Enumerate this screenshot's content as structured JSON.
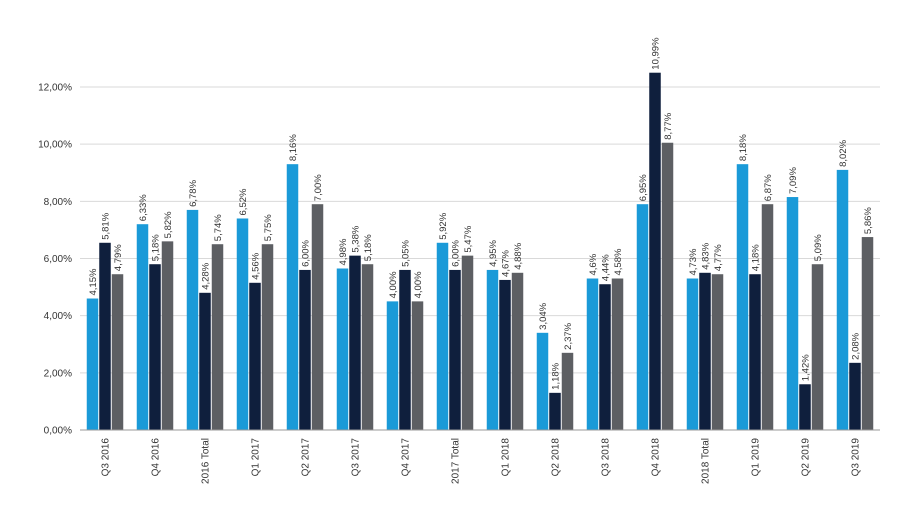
{
  "chart_data": {
    "type": "bar",
    "title": "",
    "xlabel": "",
    "ylabel": "",
    "ylim": [
      0,
      12
    ],
    "yticks": [
      "0,00%",
      "2,00%",
      "4,00%",
      "6,00%",
      "8,00%",
      "10,00%",
      "12,00%"
    ],
    "grid": true,
    "legend": "none",
    "categories": [
      "Q3 2016",
      "Q4 2016",
      "2016 Total",
      "Q1 2017",
      "Q2 2017",
      "Q3 2017",
      "Q4 2017",
      "2017 Total",
      "Q1 2018",
      "Q2 2018",
      "Q3 2018",
      "Q4 2018",
      "2018 Total",
      "Q1 2019",
      "Q2 2019",
      "Q3 2019"
    ],
    "series": [
      {
        "color": "#1a9ad8",
        "values": [
          4.6,
          7.2,
          7.7,
          7.4,
          9.3,
          5.65,
          4.5,
          6.55,
          5.6,
          3.4,
          5.3,
          7.9,
          5.3,
          9.3,
          8.15,
          9.1
        ],
        "labels": [
          "4,15%",
          "6,33%",
          "6,78%",
          "6,52%",
          "8,16%",
          "4,98%",
          "4,00%",
          "5,92%",
          "4,95%",
          "3,04%",
          "4,6%",
          "6,95%",
          "4,73%",
          "8,18%",
          "7,09%",
          "8,02%"
        ]
      },
      {
        "color": "#0f1f3d",
        "values": [
          6.55,
          5.8,
          4.8,
          5.15,
          5.6,
          6.1,
          5.6,
          5.6,
          5.25,
          1.3,
          5.1,
          12.5,
          5.5,
          5.45,
          1.6,
          2.35
        ],
        "labels": [
          "5,81%",
          "5,18%",
          "4,28%",
          "4,56%",
          "6,00%",
          "5,38%",
          "5,05%",
          "6,00%",
          "4,67%",
          "1,18%",
          "4,44%",
          "10,99%",
          "4,83%",
          "4,18%",
          "1,42%",
          "2,08%"
        ]
      },
      {
        "color": "#5d5f63",
        "values": [
          5.45,
          6.6,
          6.5,
          6.5,
          7.9,
          5.8,
          4.5,
          6.1,
          5.5,
          2.7,
          5.3,
          10.05,
          5.45,
          7.9,
          5.8,
          6.75
        ],
        "labels": [
          "4,79%",
          "5,82%",
          "5,74%",
          "5,75%",
          "7,00%",
          "5,18%",
          "4,00%",
          "5,47%",
          "4,88%",
          "2,37%",
          "4,58%",
          "8,77%",
          "4,77%",
          "6,87%",
          "5,09%",
          "5,86%"
        ]
      }
    ]
  }
}
